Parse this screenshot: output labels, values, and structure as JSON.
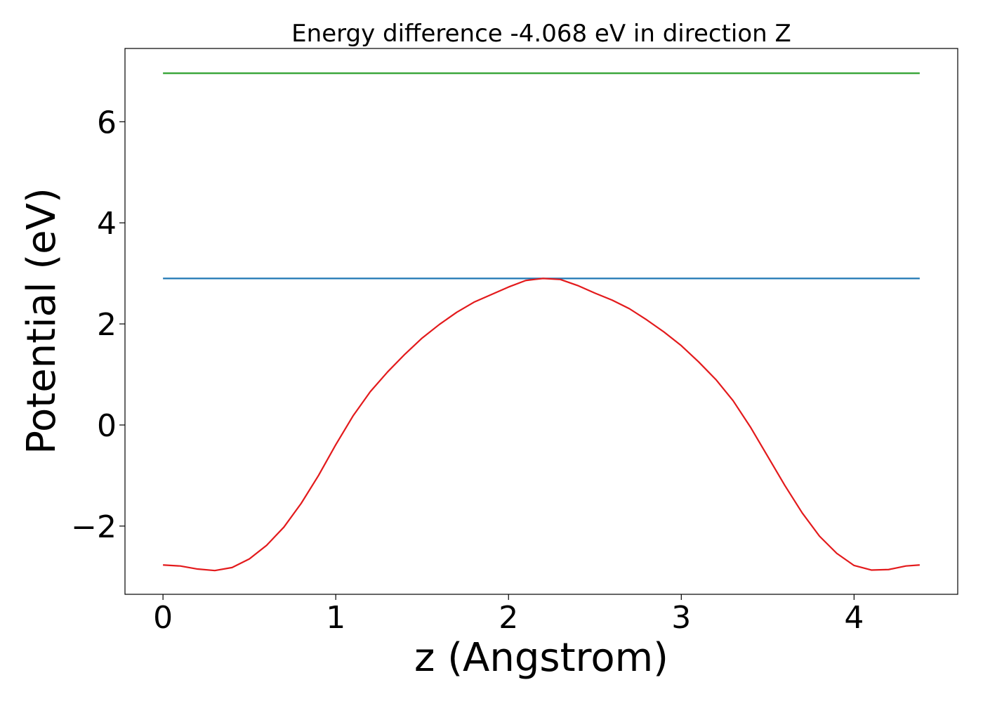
{
  "chart_data": {
    "type": "line",
    "title": "Energy difference -4.068 eV in direction Z",
    "xlabel": "z (Angstrom)",
    "ylabel": "Potential (eV)",
    "xlim": [
      -0.22,
      4.6
    ],
    "ylim": [
      -3.35,
      7.45
    ],
    "xticks": [
      0,
      1,
      2,
      3,
      4
    ],
    "xtick_labels": [
      "0",
      "1",
      "2",
      "3",
      "4"
    ],
    "yticks": [
      -2,
      0,
      2,
      4,
      6
    ],
    "ytick_labels": [
      "−2",
      "0",
      "2",
      "4",
      "6"
    ],
    "grid": false,
    "series": [
      {
        "color": "#2ca02c",
        "x": [
          0,
          4.38
        ],
        "y": [
          6.96,
          6.96
        ]
      },
      {
        "color": "#1f77b4",
        "x": [
          0,
          4.38
        ],
        "y": [
          2.9,
          2.9
        ]
      },
      {
        "color": "#e31a1c",
        "x": [
          0,
          0.1,
          0.2,
          0.3,
          0.4,
          0.5,
          0.6,
          0.7,
          0.8,
          0.9,
          1.0,
          1.1,
          1.2,
          1.3,
          1.4,
          1.5,
          1.6,
          1.7,
          1.8,
          1.9,
          2.0,
          2.1,
          2.2,
          2.3,
          2.4,
          2.5,
          2.6,
          2.7,
          2.8,
          2.9,
          3.0,
          3.1,
          3.2,
          3.3,
          3.4,
          3.5,
          3.6,
          3.7,
          3.8,
          3.9,
          4.0,
          4.1,
          4.2,
          4.3,
          4.38
        ],
        "y": [
          -2.77,
          -2.79,
          -2.85,
          -2.88,
          -2.82,
          -2.65,
          -2.38,
          -2.02,
          -1.55,
          -1.0,
          -0.39,
          0.18,
          0.66,
          1.05,
          1.4,
          1.72,
          1.99,
          2.23,
          2.43,
          2.58,
          2.73,
          2.86,
          2.9,
          2.88,
          2.76,
          2.61,
          2.47,
          2.3,
          2.08,
          1.84,
          1.57,
          1.25,
          0.9,
          0.48,
          -0.04,
          -0.62,
          -1.2,
          -1.74,
          -2.2,
          -2.54,
          -2.78,
          -2.87,
          -2.86,
          -2.79,
          -2.77
        ]
      }
    ]
  }
}
